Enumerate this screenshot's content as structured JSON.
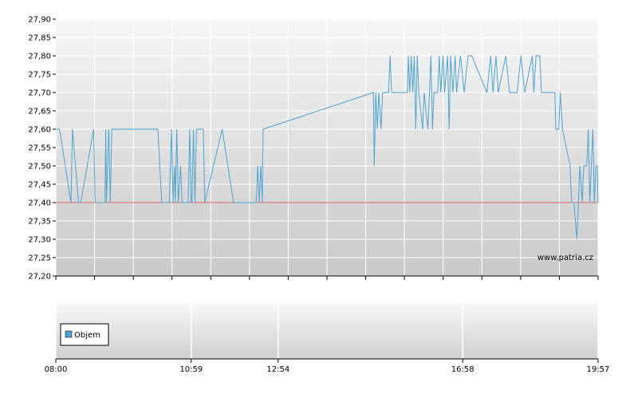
{
  "chart_data": {
    "type": "line",
    "y_ticks": [
      "27,20",
      "27,25",
      "27,30",
      "27,35",
      "27,40",
      "27,45",
      "27,50",
      "27,55",
      "27,60",
      "27,65",
      "27,70",
      "27,75",
      "27,80",
      "27,85",
      "27,90"
    ],
    "ylim": [
      27.2,
      27.9
    ],
    "x_ticks": [
      "08:00",
      "10:59",
      "12:54",
      "16:58",
      "19:57"
    ],
    "x_range": [
      "08:00",
      "19:57"
    ],
    "reference_line": {
      "value": 27.4,
      "color": "#e06666"
    },
    "series": [
      {
        "color": "#4fa3cf",
        "points": [
          [
            "08:00",
            27.6
          ],
          [
            "08:05",
            27.6
          ],
          [
            "08:20",
            27.4
          ],
          [
            "08:22",
            27.6
          ],
          [
            "08:30",
            27.4
          ],
          [
            "08:33",
            27.4
          ],
          [
            "08:50",
            27.6
          ],
          [
            "08:52",
            27.4
          ],
          [
            "09:05",
            27.4
          ],
          [
            "09:06",
            27.6
          ],
          [
            "09:07",
            27.4
          ],
          [
            "09:10",
            27.6
          ],
          [
            "09:12",
            27.4
          ],
          [
            "09:14",
            27.6
          ],
          [
            "09:16",
            27.6
          ],
          [
            "10:15",
            27.6
          ],
          [
            "10:20",
            27.4
          ],
          [
            "10:30",
            27.4
          ],
          [
            "10:33",
            27.6
          ],
          [
            "10:35",
            27.4
          ],
          [
            "10:37",
            27.5
          ],
          [
            "10:38",
            27.4
          ],
          [
            "10:40",
            27.6
          ],
          [
            "10:42",
            27.4
          ],
          [
            "10:45",
            27.5
          ],
          [
            "10:47",
            27.4
          ],
          [
            "10:55",
            27.4
          ],
          [
            "10:57",
            27.6
          ],
          [
            "10:59",
            27.4
          ],
          [
            "11:00",
            27.4
          ],
          [
            "11:02",
            27.6
          ],
          [
            "11:04",
            27.4
          ],
          [
            "11:06",
            27.6
          ],
          [
            "11:15",
            27.6
          ],
          [
            "11:17",
            27.4
          ],
          [
            "11:40",
            27.6
          ],
          [
            "11:55",
            27.4
          ],
          [
            "12:25",
            27.4
          ],
          [
            "12:27",
            27.5
          ],
          [
            "12:29",
            27.4
          ],
          [
            "12:31",
            27.5
          ],
          [
            "12:33",
            27.4
          ],
          [
            "12:34",
            27.6
          ],
          [
            "15:00",
            27.7
          ],
          [
            "15:01",
            27.5
          ],
          [
            "15:03",
            27.7
          ],
          [
            "15:05",
            27.6
          ],
          [
            "15:07",
            27.7
          ],
          [
            "15:10",
            27.6
          ],
          [
            "15:12",
            27.7
          ],
          [
            "15:20",
            27.7
          ],
          [
            "15:22",
            27.8
          ],
          [
            "15:24",
            27.7
          ],
          [
            "15:45",
            27.7
          ],
          [
            "15:46",
            27.8
          ],
          [
            "15:48",
            27.7
          ],
          [
            "15:50",
            27.8
          ],
          [
            "15:52",
            27.7
          ],
          [
            "15:54",
            27.8
          ],
          [
            "15:56",
            27.6
          ],
          [
            "15:58",
            27.8
          ],
          [
            "16:00",
            27.7
          ],
          [
            "16:05",
            27.6
          ],
          [
            "16:07",
            27.7
          ],
          [
            "16:12",
            27.6
          ],
          [
            "16:14",
            27.7
          ],
          [
            "16:16",
            27.8
          ],
          [
            "16:18",
            27.6
          ],
          [
            "16:20",
            27.7
          ],
          [
            "16:25",
            27.7
          ],
          [
            "16:27",
            27.8
          ],
          [
            "16:29",
            27.7
          ],
          [
            "16:32",
            27.8
          ],
          [
            "16:34",
            27.7
          ],
          [
            "16:38",
            27.8
          ],
          [
            "16:40",
            27.6
          ],
          [
            "16:42",
            27.8
          ],
          [
            "16:45",
            27.7
          ],
          [
            "16:48",
            27.8
          ],
          [
            "16:50",
            27.7
          ],
          [
            "16:55",
            27.8
          ],
          [
            "17:00",
            27.7
          ],
          [
            "17:05",
            27.8
          ],
          [
            "17:10",
            27.8
          ],
          [
            "17:30",
            27.7
          ],
          [
            "17:35",
            27.8
          ],
          [
            "17:38",
            27.7
          ],
          [
            "17:42",
            27.8
          ],
          [
            "17:45",
            27.7
          ],
          [
            "17:55",
            27.8
          ],
          [
            "18:00",
            27.7
          ],
          [
            "18:10",
            27.7
          ],
          [
            "18:15",
            27.8
          ],
          [
            "18:20",
            27.7
          ],
          [
            "18:30",
            27.8
          ],
          [
            "18:32",
            27.7
          ],
          [
            "18:35",
            27.8
          ],
          [
            "18:40",
            27.8
          ],
          [
            "18:42",
            27.7
          ],
          [
            "19:00",
            27.7
          ],
          [
            "19:01",
            27.6
          ],
          [
            "19:05",
            27.6
          ],
          [
            "19:07",
            27.7
          ],
          [
            "19:10",
            27.6
          ],
          [
            "19:20",
            27.5
          ],
          [
            "19:22",
            27.4
          ],
          [
            "19:25",
            27.4
          ],
          [
            "19:29",
            27.3
          ],
          [
            "19:33",
            27.5
          ],
          [
            "19:36",
            27.4
          ],
          [
            "19:38",
            27.5
          ],
          [
            "19:42",
            27.5
          ],
          [
            "19:44",
            27.6
          ],
          [
            "19:46",
            27.4
          ],
          [
            "19:48",
            27.5
          ],
          [
            "19:50",
            27.6
          ],
          [
            "19:52",
            27.4
          ],
          [
            "19:54",
            27.5
          ],
          [
            "19:56",
            27.5
          ],
          [
            "19:57",
            27.4
          ]
        ]
      }
    ],
    "volume_panel": {
      "legend": "Objem",
      "legend_color": "#4fa3cf",
      "x_ticks": [
        "08:00",
        "10:59",
        "12:54",
        "16:58",
        "19:57"
      ]
    },
    "watermark": "www.patria.cz",
    "grid": true
  }
}
